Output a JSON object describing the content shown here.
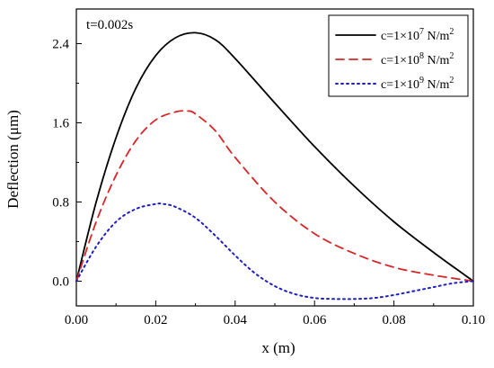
{
  "chart_data": {
    "type": "line",
    "annotation": "t=0.002s",
    "xlabel": "x (m)",
    "ylabel": "Deflection (μm)",
    "xlim": [
      0.0,
      0.1
    ],
    "ylim": [
      -0.25,
      2.75
    ],
    "x_ticks": [
      0.0,
      0.02,
      0.04,
      0.06,
      0.08,
      0.1
    ],
    "x_tick_labels": [
      "0.00",
      "0.02",
      "0.04",
      "0.06",
      "0.08",
      "0.10"
    ],
    "y_ticks": [
      0.0,
      0.8,
      1.6,
      2.4
    ],
    "y_tick_labels": [
      "0.0",
      "0.8",
      "1.6",
      "2.4"
    ],
    "legend_position": "top-right",
    "grid": false,
    "series": [
      {
        "name": "c=1×10^7 N/m^2",
        "legend": {
          "base": "c=1×10",
          "exp": "7",
          "unit": " N/m",
          "unit_exp": "2"
        },
        "style": "solid",
        "color": "#000000",
        "x": [
          0.0,
          0.005,
          0.01,
          0.015,
          0.02,
          0.025,
          0.03,
          0.035,
          0.04,
          0.05,
          0.06,
          0.07,
          0.08,
          0.09,
          0.1
        ],
        "y": [
          0.0,
          0.8,
          1.45,
          1.95,
          2.28,
          2.46,
          2.51,
          2.44,
          2.25,
          1.8,
          1.36,
          0.96,
          0.6,
          0.29,
          0.0
        ]
      },
      {
        "name": "c=1×10^8 N/m^2",
        "legend": {
          "base": "c=1×10",
          "exp": "8",
          "unit": " N/m",
          "unit_exp": "2"
        },
        "style": "dashed",
        "color": "#d62728",
        "x": [
          0.0,
          0.005,
          0.01,
          0.015,
          0.02,
          0.025,
          0.028,
          0.03,
          0.035,
          0.04,
          0.05,
          0.06,
          0.07,
          0.08,
          0.09,
          0.1
        ],
        "y": [
          0.0,
          0.6,
          1.07,
          1.42,
          1.63,
          1.71,
          1.72,
          1.69,
          1.52,
          1.25,
          0.8,
          0.48,
          0.28,
          0.14,
          0.06,
          0.0
        ]
      },
      {
        "name": "c=1×10^9 N/m^2",
        "legend": {
          "base": "c=1×10",
          "exp": "9",
          "unit": " N/m",
          "unit_exp": "2"
        },
        "style": "dotted",
        "color": "#1f1fbf",
        "x": [
          0.0,
          0.005,
          0.01,
          0.015,
          0.02,
          0.022,
          0.025,
          0.03,
          0.035,
          0.04,
          0.045,
          0.05,
          0.055,
          0.06,
          0.065,
          0.07,
          0.075,
          0.08,
          0.085,
          0.09,
          0.095,
          0.1
        ],
        "y": [
          0.0,
          0.35,
          0.6,
          0.73,
          0.78,
          0.78,
          0.75,
          0.64,
          0.46,
          0.26,
          0.08,
          -0.05,
          -0.13,
          -0.17,
          -0.18,
          -0.18,
          -0.17,
          -0.14,
          -0.1,
          -0.06,
          -0.02,
          0.0
        ]
      }
    ]
  }
}
